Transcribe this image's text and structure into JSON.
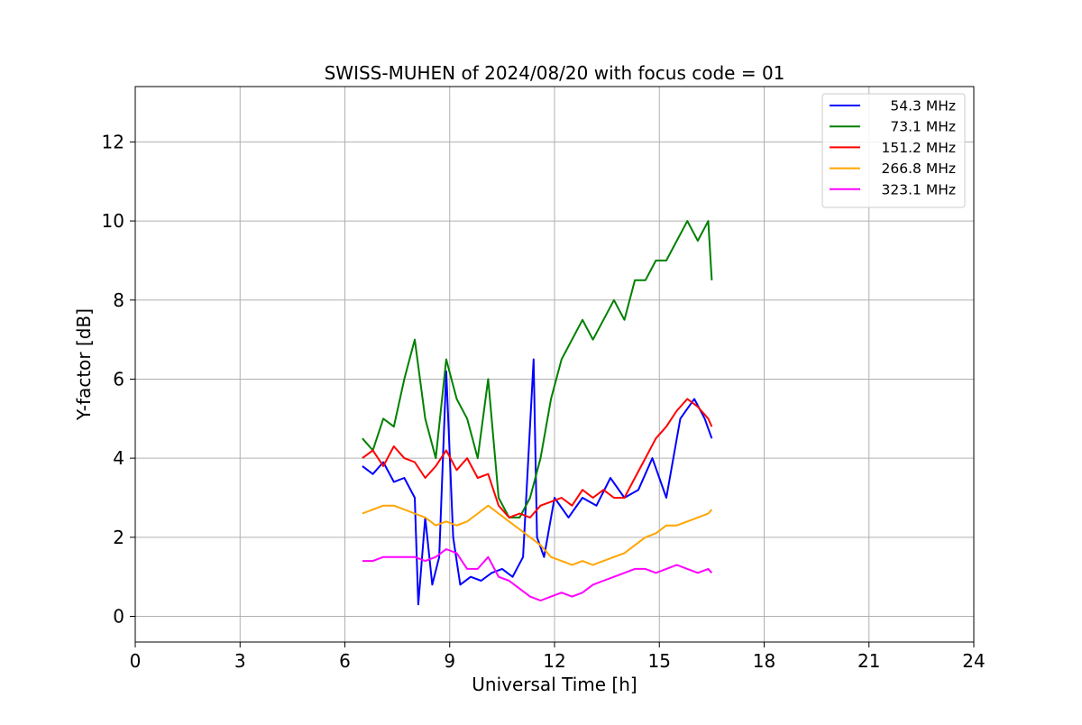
{
  "chart_data": {
    "type": "line",
    "title": "SWISS-MUHEN of 2024/08/20 with focus code = 01",
    "xlabel": "Universal Time [h]",
    "ylabel": "Y-factor [dB]",
    "xlim": [
      0,
      24
    ],
    "ylim": [
      -0.65,
      13.4
    ],
    "xticks": [
      0,
      3,
      6,
      9,
      12,
      15,
      18,
      21,
      24
    ],
    "yticks": [
      0,
      2,
      4,
      6,
      8,
      10,
      12
    ],
    "grid": true,
    "legend_position": "top-right",
    "series": [
      {
        "name": "54.3 MHz",
        "color": "#0000ff",
        "x": [
          6.5,
          6.8,
          7.1,
          7.4,
          7.7,
          8.0,
          8.1,
          8.3,
          8.5,
          8.7,
          8.9,
          9.1,
          9.3,
          9.6,
          9.9,
          10.2,
          10.5,
          10.8,
          11.1,
          11.4,
          11.5,
          11.7,
          12.0,
          12.4,
          12.8,
          13.2,
          13.6,
          14.0,
          14.4,
          14.8,
          15.2,
          15.6,
          16.0,
          16.3,
          16.5
        ],
        "values": [
          3.8,
          3.6,
          3.9,
          3.4,
          3.5,
          3.0,
          0.3,
          2.5,
          0.8,
          1.5,
          6.2,
          2.0,
          0.8,
          1.0,
          0.9,
          1.1,
          1.2,
          1.0,
          1.5,
          6.5,
          2.0,
          1.5,
          3.0,
          2.5,
          3.0,
          2.8,
          3.5,
          3.0,
          3.2,
          4.0,
          3.0,
          5.0,
          5.5,
          5.0,
          4.5
        ]
      },
      {
        "name": "73.1 MHz",
        "color": "#008000",
        "x": [
          6.5,
          6.8,
          7.1,
          7.4,
          7.7,
          8.0,
          8.3,
          8.6,
          8.9,
          9.2,
          9.5,
          9.8,
          10.1,
          10.4,
          10.7,
          11.0,
          11.3,
          11.6,
          11.9,
          12.2,
          12.5,
          12.8,
          13.1,
          13.4,
          13.7,
          14.0,
          14.3,
          14.6,
          14.9,
          15.2,
          15.5,
          15.8,
          16.1,
          16.4,
          16.5
        ],
        "values": [
          4.5,
          4.2,
          5.0,
          4.8,
          6.0,
          7.0,
          5.0,
          4.0,
          6.5,
          5.5,
          5.0,
          4.0,
          6.0,
          3.0,
          2.5,
          2.5,
          3.0,
          4.0,
          5.5,
          6.5,
          7.0,
          7.5,
          7.0,
          7.5,
          8.0,
          7.5,
          8.5,
          8.5,
          9.0,
          9.0,
          9.5,
          10.0,
          9.5,
          10.0,
          8.5
        ]
      },
      {
        "name": "151.2 MHz",
        "color": "#ff0000",
        "x": [
          6.5,
          6.8,
          7.1,
          7.4,
          7.7,
          8.0,
          8.3,
          8.6,
          8.9,
          9.2,
          9.5,
          9.8,
          10.1,
          10.4,
          10.7,
          11.0,
          11.3,
          11.6,
          11.9,
          12.2,
          12.5,
          12.8,
          13.1,
          13.4,
          13.7,
          14.0,
          14.3,
          14.6,
          14.9,
          15.2,
          15.5,
          15.8,
          16.1,
          16.4,
          16.5
        ],
        "values": [
          4.0,
          4.2,
          3.8,
          4.3,
          4.0,
          3.9,
          3.5,
          3.8,
          4.2,
          3.7,
          4.0,
          3.5,
          3.6,
          2.8,
          2.5,
          2.6,
          2.5,
          2.8,
          2.9,
          3.0,
          2.8,
          3.2,
          3.0,
          3.2,
          3.0,
          3.0,
          3.5,
          4.0,
          4.5,
          4.8,
          5.2,
          5.5,
          5.3,
          5.0,
          4.8
        ]
      },
      {
        "name": "266.8 MHz",
        "color": "#ffa500",
        "x": [
          6.5,
          6.8,
          7.1,
          7.4,
          7.7,
          8.0,
          8.3,
          8.6,
          8.9,
          9.2,
          9.5,
          9.8,
          10.1,
          10.4,
          10.7,
          11.0,
          11.3,
          11.6,
          11.9,
          12.2,
          12.5,
          12.8,
          13.1,
          13.4,
          13.7,
          14.0,
          14.3,
          14.6,
          14.9,
          15.2,
          15.5,
          15.8,
          16.1,
          16.4,
          16.5
        ],
        "values": [
          2.6,
          2.7,
          2.8,
          2.8,
          2.7,
          2.6,
          2.5,
          2.3,
          2.4,
          2.3,
          2.4,
          2.6,
          2.8,
          2.6,
          2.4,
          2.2,
          2.0,
          1.8,
          1.5,
          1.4,
          1.3,
          1.4,
          1.3,
          1.4,
          1.5,
          1.6,
          1.8,
          2.0,
          2.1,
          2.3,
          2.3,
          2.4,
          2.5,
          2.6,
          2.7
        ]
      },
      {
        "name": "323.1 MHz",
        "color": "#ff00ff",
        "x": [
          6.5,
          6.8,
          7.1,
          7.4,
          7.7,
          8.0,
          8.3,
          8.6,
          8.9,
          9.2,
          9.5,
          9.8,
          10.1,
          10.4,
          10.7,
          11.0,
          11.3,
          11.6,
          11.9,
          12.2,
          12.5,
          12.8,
          13.1,
          13.4,
          13.7,
          14.0,
          14.3,
          14.6,
          14.9,
          15.2,
          15.5,
          15.8,
          16.1,
          16.4,
          16.5
        ],
        "values": [
          1.4,
          1.4,
          1.5,
          1.5,
          1.5,
          1.5,
          1.4,
          1.5,
          1.7,
          1.6,
          1.2,
          1.2,
          1.5,
          1.0,
          0.9,
          0.7,
          0.5,
          0.4,
          0.5,
          0.6,
          0.5,
          0.6,
          0.8,
          0.9,
          1.0,
          1.1,
          1.2,
          1.2,
          1.1,
          1.2,
          1.3,
          1.2,
          1.1,
          1.2,
          1.1
        ]
      }
    ]
  }
}
